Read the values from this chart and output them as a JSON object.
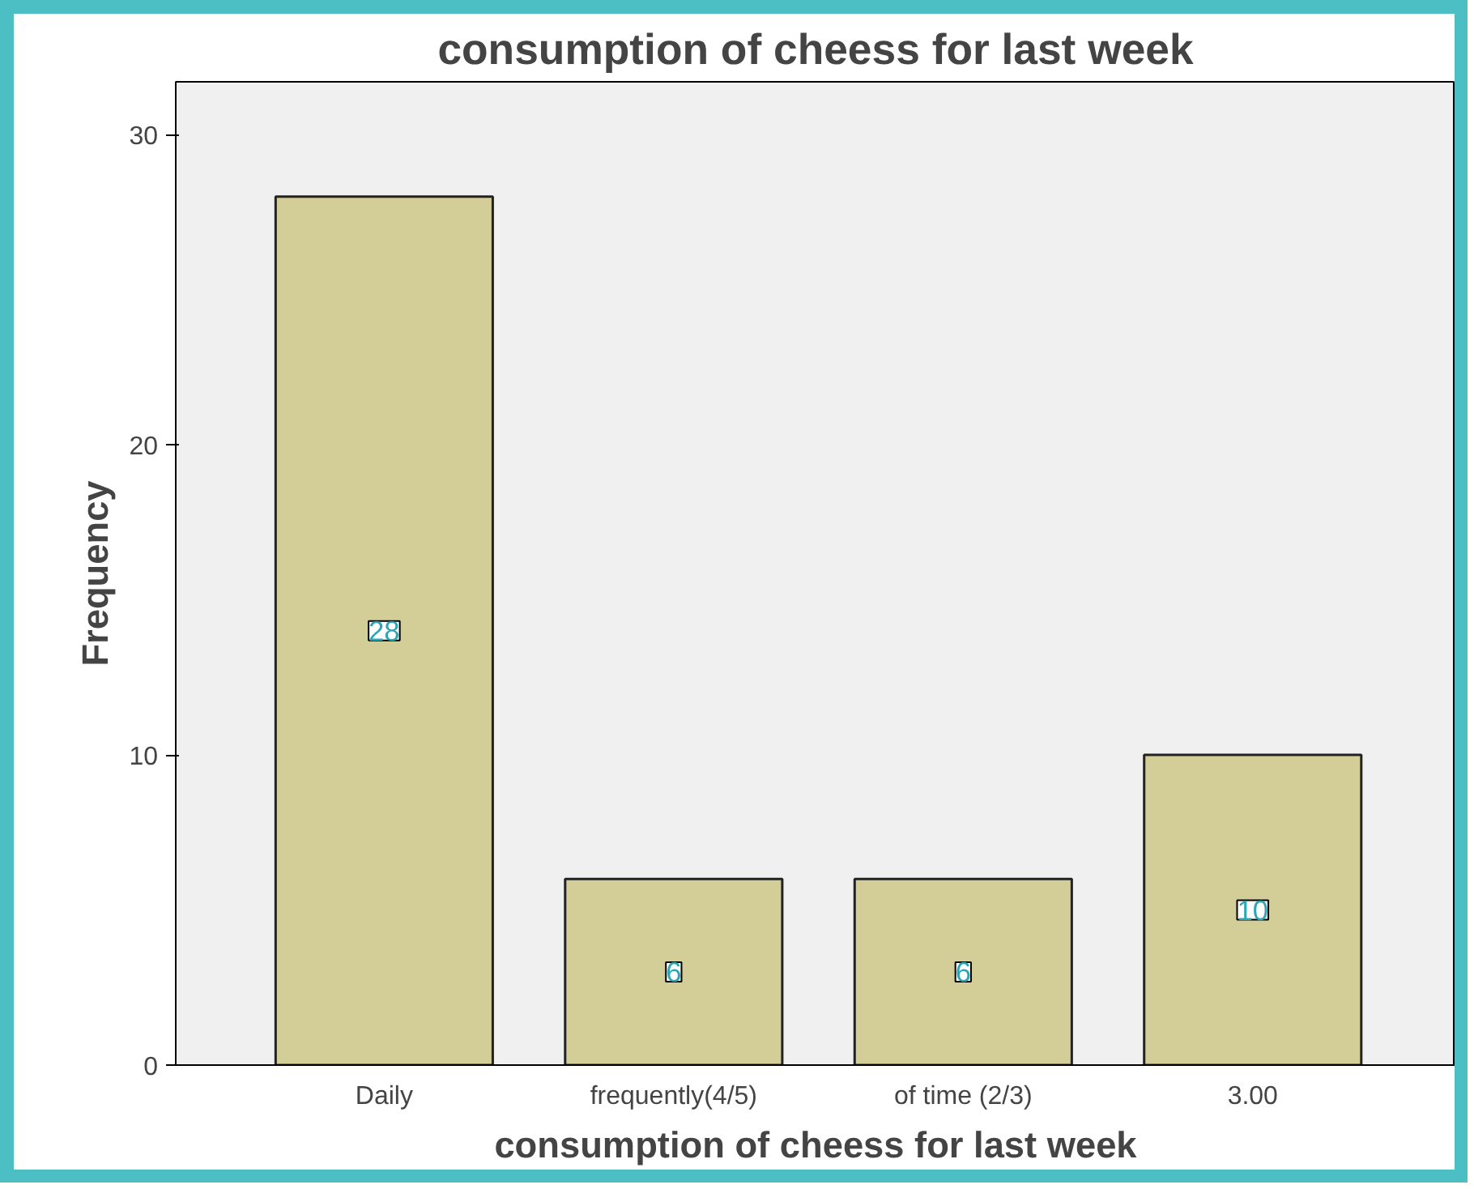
{
  "chart_data": {
    "type": "bar",
    "title": "consumption of cheess for last week",
    "xlabel": "consumption of cheess for last week",
    "ylabel": "Frequency",
    "categories": [
      "Daily",
      "frequently(4/5)",
      "of time (2/3)",
      "3.00"
    ],
    "values": [
      28,
      6,
      6,
      10
    ],
    "color": "#d3cd98",
    "ylim": [
      0,
      31.7
    ],
    "yticks": [
      0,
      10,
      20,
      30
    ],
    "grid": false,
    "data_labels": true
  }
}
